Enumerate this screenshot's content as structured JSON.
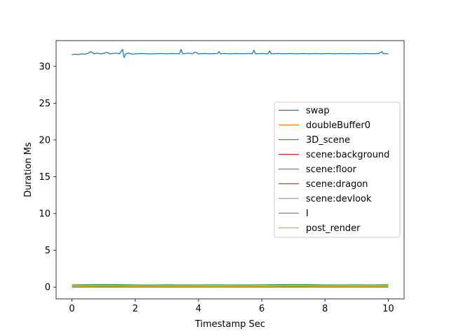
{
  "chart_data": {
    "type": "line",
    "xlabel": "Timestamp Sec",
    "ylabel": "Duration Ms",
    "xlim": [
      -0.5,
      10.5
    ],
    "ylim": [
      -1.6,
      33.5
    ],
    "xticks": [
      0,
      2,
      4,
      6,
      8,
      10
    ],
    "yticks": [
      0,
      5,
      10,
      15,
      20,
      25,
      30
    ],
    "grid": false,
    "legend_position": "center-right",
    "series": [
      {
        "name": "swap",
        "color": "#1f77b4",
        "x": [
          0.0,
          0.1,
          0.2,
          0.3,
          0.4,
          0.5,
          0.6,
          0.7,
          0.8,
          0.9,
          1.0,
          1.1,
          1.2,
          1.3,
          1.4,
          1.5,
          1.6,
          1.65,
          1.7,
          1.8,
          1.9,
          2.0,
          2.2,
          2.4,
          2.6,
          2.8,
          3.0,
          3.2,
          3.4,
          3.45,
          3.5,
          3.6,
          3.7,
          3.8,
          3.9,
          4.0,
          4.2,
          4.4,
          4.6,
          4.65,
          4.7,
          4.8,
          5.0,
          5.2,
          5.4,
          5.6,
          5.7,
          5.75,
          5.8,
          6.0,
          6.2,
          6.25,
          6.3,
          6.5,
          6.7,
          6.9,
          7.1,
          7.3,
          7.5,
          7.7,
          7.9,
          8.1,
          8.3,
          8.5,
          8.7,
          8.9,
          9.1,
          9.3,
          9.5,
          9.7,
          9.8,
          9.85,
          9.9,
          10.0
        ],
        "values": [
          31.6,
          31.65,
          31.6,
          31.7,
          31.65,
          31.75,
          32.0,
          31.7,
          31.8,
          31.7,
          31.75,
          31.9,
          31.7,
          31.75,
          31.8,
          31.7,
          32.3,
          31.2,
          31.7,
          31.8,
          31.65,
          31.7,
          31.75,
          31.7,
          31.7,
          31.75,
          31.7,
          31.75,
          31.7,
          32.3,
          31.7,
          31.75,
          31.8,
          31.7,
          31.95,
          31.7,
          31.75,
          31.7,
          31.75,
          32.0,
          31.7,
          31.75,
          31.7,
          31.75,
          31.7,
          31.75,
          31.7,
          32.2,
          31.7,
          31.75,
          31.7,
          32.1,
          31.7,
          31.75,
          31.7,
          31.75,
          31.7,
          31.75,
          31.7,
          31.75,
          31.7,
          31.75,
          31.7,
          31.75,
          31.7,
          31.75,
          31.7,
          31.75,
          31.7,
          31.75,
          32.0,
          31.7,
          31.75,
          31.7
        ]
      },
      {
        "name": "doubleBuffer0",
        "color": "#ff7f0e",
        "x": [
          0,
          0.5,
          1,
          1.5,
          2,
          2.5,
          3,
          3.5,
          4,
          4.5,
          5,
          5.5,
          6,
          6.5,
          7,
          7.5,
          8,
          8.5,
          9,
          9.5,
          10
        ],
        "values": [
          0.15,
          0.18,
          0.22,
          0.2,
          0.16,
          0.15,
          0.17,
          0.16,
          0.15,
          0.16,
          0.15,
          0.16,
          0.15,
          0.18,
          0.22,
          0.2,
          0.16,
          0.15,
          0.16,
          0.15,
          0.17
        ]
      },
      {
        "name": "3D_scene",
        "color": "#2ca02c",
        "x": [
          0,
          0.5,
          1,
          1.5,
          2,
          2.5,
          3,
          3.5,
          4,
          4.5,
          5,
          5.5,
          6,
          6.5,
          7,
          7.5,
          8,
          8.5,
          9,
          9.5,
          10
        ],
        "values": [
          0.3,
          0.32,
          0.35,
          0.33,
          0.3,
          0.29,
          0.31,
          0.3,
          0.3,
          0.31,
          0.3,
          0.3,
          0.31,
          0.33,
          0.35,
          0.33,
          0.3,
          0.3,
          0.31,
          0.3,
          0.32
        ]
      },
      {
        "name": "scene:background",
        "color": "#d62728",
        "x": [
          0,
          10
        ],
        "values": [
          0.05,
          0.05
        ]
      },
      {
        "name": "scene:floor",
        "color": "#9467bd",
        "x": [
          0,
          10
        ],
        "values": [
          0.03,
          0.03
        ]
      },
      {
        "name": "scene:dragon",
        "color": "#8c564b",
        "x": [
          0,
          10
        ],
        "values": [
          0.1,
          0.1
        ]
      },
      {
        "name": "scene:devlook",
        "color": "#e377c2",
        "x": [
          0,
          10
        ],
        "values": [
          0.02,
          0.02
        ]
      },
      {
        "name": "I",
        "color": "#7f7f7f",
        "x": [
          0,
          10
        ],
        "values": [
          0.01,
          0.01
        ]
      },
      {
        "name": "post_render",
        "color": "#bcbd22",
        "x": [
          0,
          0.5,
          1,
          1.5,
          2,
          2.5,
          3,
          3.5,
          4,
          4.5,
          5,
          5.5,
          6,
          6.5,
          7,
          7.5,
          8,
          8.5,
          9,
          9.5,
          10
        ],
        "values": [
          0.12,
          0.14,
          0.18,
          0.16,
          0.13,
          0.12,
          0.14,
          0.13,
          0.12,
          0.13,
          0.12,
          0.13,
          0.12,
          0.15,
          0.18,
          0.16,
          0.13,
          0.12,
          0.13,
          0.12,
          0.14
        ]
      }
    ]
  }
}
